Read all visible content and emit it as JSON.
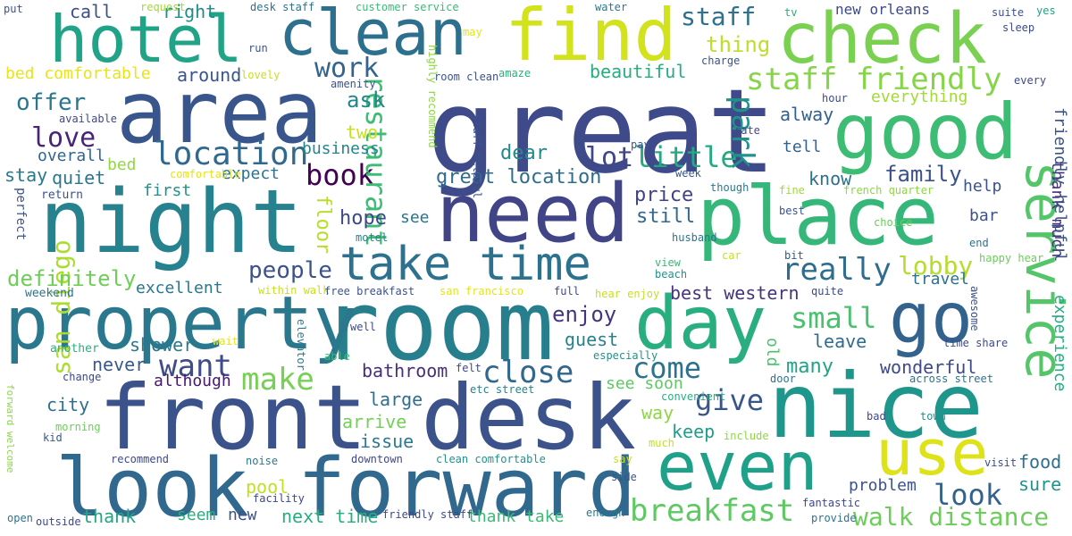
{
  "words": [
    {
      "text": "great",
      "color": "#3e4a89"
    },
    {
      "text": "room",
      "color": "#277f8e"
    },
    {
      "text": "front desk",
      "color": "#3b528b"
    },
    {
      "text": "look forward",
      "color": "#31688e"
    },
    {
      "text": "night",
      "color": "#26828e"
    },
    {
      "text": "need",
      "color": "#414487"
    },
    {
      "text": "area",
      "color": "#39568c"
    },
    {
      "text": "place",
      "color": "#35b779"
    },
    {
      "text": "nice",
      "color": "#1f968b"
    },
    {
      "text": "find",
      "color": "#d2e21b"
    },
    {
      "text": "check",
      "color": "#7ad151"
    },
    {
      "text": "good",
      "color": "#3dbc74"
    },
    {
      "text": "hotel",
      "color": "#20a386"
    },
    {
      "text": "day",
      "color": "#29af7f"
    },
    {
      "text": "property",
      "color": "#2a788e"
    },
    {
      "text": "even",
      "color": "#1fa088"
    },
    {
      "text": "take time",
      "color": "#2c728e"
    },
    {
      "text": "clean",
      "color": "#2d708e"
    },
    {
      "text": "go",
      "color": "#33638d"
    },
    {
      "text": "service",
      "color": "#54c568"
    },
    {
      "text": "use",
      "color": "#dde318"
    },
    {
      "text": "breakfast",
      "color": "#5ec962"
    },
    {
      "text": "location",
      "color": "#30698e"
    },
    {
      "text": "san diego",
      "color": "#addc30"
    },
    {
      "text": "walk distance",
      "color": "#6ccd5a"
    },
    {
      "text": "staff friendly",
      "color": "#86d549"
    },
    {
      "text": "book",
      "color": "#440154"
    },
    {
      "text": "restaurant",
      "color": "#3dbc74"
    },
    {
      "text": "work",
      "color": "#32648e"
    },
    {
      "text": "love",
      "color": "#482576"
    },
    {
      "text": "offer",
      "color": "#2a768e"
    },
    {
      "text": "make",
      "color": "#75d054"
    },
    {
      "text": "want",
      "color": "#3e4c8a"
    },
    {
      "text": "close",
      "color": "#31678e"
    },
    {
      "text": "come",
      "color": "#2c728e"
    },
    {
      "text": "give",
      "color": "#39568c"
    },
    {
      "text": "little",
      "color": "#24aa83"
    },
    {
      "text": "small",
      "color": "#4ac16d"
    },
    {
      "text": "really",
      "color": "#2e6d8e"
    },
    {
      "text": "look",
      "color": "#33638d"
    },
    {
      "text": "lobby",
      "color": "#b5de2b"
    },
    {
      "text": "park",
      "color": "#21918c"
    },
    {
      "text": "people",
      "color": "#3b528b"
    },
    {
      "text": "definitely",
      "color": "#6ece58"
    },
    {
      "text": "staff",
      "color": "#2d718e"
    },
    {
      "text": "thing",
      "color": "#bddf26"
    },
    {
      "text": "lot",
      "color": "#3f4788"
    },
    {
      "text": "enjoy",
      "color": "#453581"
    },
    {
      "text": "family",
      "color": "#3b528b"
    },
    {
      "text": "great location",
      "color": "#2f6c8e"
    },
    {
      "text": "best western",
      "color": "#46337e"
    },
    {
      "text": "wonderful",
      "color": "#3e4989"
    },
    {
      "text": "ask",
      "color": "#25858e"
    },
    {
      "text": "beautiful",
      "color": "#26ad81"
    },
    {
      "text": "dear",
      "color": "#23898e"
    },
    {
      "text": "floor",
      "color": "#b8de29"
    },
    {
      "text": "hope",
      "color": "#3e4989"
    },
    {
      "text": "price",
      "color": "#424186"
    },
    {
      "text": "still",
      "color": "#31688e"
    },
    {
      "text": "many",
      "color": "#20a486"
    },
    {
      "text": "leave",
      "color": "#2f6b8e"
    },
    {
      "text": "guest",
      "color": "#27808e"
    },
    {
      "text": "pool",
      "color": "#c2df23"
    },
    {
      "text": "keep",
      "color": "#1f9e89"
    },
    {
      "text": "way",
      "color": "#8ed645"
    },
    {
      "text": "next time",
      "color": "#26ad81"
    },
    {
      "text": "city",
      "color": "#2d708e"
    },
    {
      "text": "never",
      "color": "#38598c"
    },
    {
      "text": "shower",
      "color": "#2a788e"
    },
    {
      "text": "bathroom",
      "color": "#46307e"
    },
    {
      "text": "large",
      "color": "#2e6e8e"
    },
    {
      "text": "arrive",
      "color": "#73d056"
    },
    {
      "text": "issue",
      "color": "#2a788e"
    },
    {
      "text": "food",
      "color": "#2d708e"
    },
    {
      "text": "sure",
      "color": "#1f948c"
    },
    {
      "text": "problem",
      "color": "#3b528b"
    },
    {
      "text": "around",
      "color": "#39568c"
    },
    {
      "text": "call",
      "color": "#3b518b"
    },
    {
      "text": "right",
      "color": "#228c8d"
    },
    {
      "text": "bed comfortable",
      "color": "#e7e419"
    },
    {
      "text": "stay",
      "color": "#2a788e"
    },
    {
      "text": "quiet",
      "color": "#2b758e"
    },
    {
      "text": "bed",
      "color": "#93d741"
    },
    {
      "text": "first",
      "color": "#21918c"
    },
    {
      "text": "overall",
      "color": "#31668e"
    },
    {
      "text": "business",
      "color": "#25838e"
    },
    {
      "text": "two",
      "color": "#c8e020"
    },
    {
      "text": "expect",
      "color": "#2c728e"
    },
    {
      "text": "see",
      "color": "#2a768e"
    },
    {
      "text": "excellent",
      "color": "#2a768e"
    },
    {
      "text": "travel",
      "color": "#2c728e"
    },
    {
      "text": "help",
      "color": "#3b528b"
    },
    {
      "text": "bar",
      "color": "#3b528b"
    },
    {
      "text": "know",
      "color": "#2d708e"
    },
    {
      "text": "tell",
      "color": "#33638d"
    },
    {
      "text": "alway",
      "color": "#34608d"
    },
    {
      "text": "everything",
      "color": "#a2da37"
    },
    {
      "text": "thank much",
      "color": "#46327e"
    },
    {
      "text": "friendly helpful",
      "color": "#3b528b"
    },
    {
      "text": "experience",
      "color": "#25ac82"
    },
    {
      "text": "although",
      "color": "#48186a"
    },
    {
      "text": "see soon",
      "color": "#5ec962"
    },
    {
      "text": "thank",
      "color": "#21a585"
    },
    {
      "text": "seem",
      "color": "#29af7f"
    },
    {
      "text": "new",
      "color": "#3b528b"
    },
    {
      "text": "thank take",
      "color": "#3aba76"
    },
    {
      "text": "old",
      "color": "#4ac16d"
    },
    {
      "text": "perfect",
      "color": "#3b528b"
    },
    {
      "text": "return",
      "color": "#3b528b"
    },
    {
      "text": "weekend",
      "color": "#2c738e"
    },
    {
      "text": "another",
      "color": "#29af7f"
    },
    {
      "text": "change",
      "color": "#3e4989"
    },
    {
      "text": "forward welcome",
      "color": "#8ed645"
    },
    {
      "text": "morning",
      "color": "#6ccd5a"
    },
    {
      "text": "kid",
      "color": "#38588c"
    },
    {
      "text": "recommend",
      "color": "#3e4989"
    },
    {
      "text": "noise",
      "color": "#2a788e"
    },
    {
      "text": "downtown",
      "color": "#3f4889"
    },
    {
      "text": "clean comfortable",
      "color": "#21918c"
    },
    {
      "text": "facility",
      "color": "#3f4889"
    },
    {
      "text": "friendly staff",
      "color": "#3f4889"
    },
    {
      "text": "outside",
      "color": "#3e4989"
    },
    {
      "text": "open",
      "color": "#2c738e"
    },
    {
      "text": "put",
      "color": "#3b528b"
    },
    {
      "text": "request",
      "color": "#a2da37"
    },
    {
      "text": "desk staff",
      "color": "#2c728e"
    },
    {
      "text": "customer service",
      "color": "#3aba76"
    },
    {
      "text": "water",
      "color": "#2a788e"
    },
    {
      "text": "tv",
      "color": "#27ad81"
    },
    {
      "text": "suite",
      "color": "#3b528b"
    },
    {
      "text": "sleep",
      "color": "#3e4989"
    },
    {
      "text": "new orleans",
      "color": "#3e4989"
    },
    {
      "text": "yes",
      "color": "#20a486"
    },
    {
      "text": "run",
      "color": "#3b528b"
    },
    {
      "text": "lovely",
      "color": "#c8e020"
    },
    {
      "text": "may",
      "color": "#e5e419"
    },
    {
      "text": "room clean",
      "color": "#3b528b"
    },
    {
      "text": "amaze",
      "color": "#29af7f"
    },
    {
      "text": "amenity",
      "color": "#3b528b"
    },
    {
      "text": "highly recommend",
      "color": "#8ed645"
    },
    {
      "text": "staff helpful",
      "color": "#3b528b"
    },
    {
      "text": "charge",
      "color": "#3b528b"
    },
    {
      "text": "hour",
      "color": "#3e4989"
    },
    {
      "text": "every",
      "color": "#3e4989"
    },
    {
      "text": "rate",
      "color": "#3e4989"
    },
    {
      "text": "pay",
      "color": "#38588c"
    },
    {
      "text": "week",
      "color": "#38588c"
    },
    {
      "text": "though",
      "color": "#2a788e"
    },
    {
      "text": "fine",
      "color": "#a2da37"
    },
    {
      "text": "french quarter",
      "color": "#8ed645"
    },
    {
      "text": "best",
      "color": "#3b528b"
    },
    {
      "text": "choice",
      "color": "#6ccd5a"
    },
    {
      "text": "husband",
      "color": "#2c738e"
    },
    {
      "text": "motel",
      "color": "#26828e"
    },
    {
      "text": "end",
      "color": "#2c738e"
    },
    {
      "text": "happy hear",
      "color": "#6ccd5a"
    },
    {
      "text": "bit",
      "color": "#38588c"
    },
    {
      "text": "car",
      "color": "#c8e020"
    },
    {
      "text": "view",
      "color": "#3aba76"
    },
    {
      "text": "beach",
      "color": "#21918c"
    },
    {
      "text": "within walk",
      "color": "#c8e020"
    },
    {
      "text": "free breakfast",
      "color": "#3b528b"
    },
    {
      "text": "san francisco",
      "color": "#e5e419"
    },
    {
      "text": "full",
      "color": "#3e4989"
    },
    {
      "text": "hear enjoy",
      "color": "#c8e020"
    },
    {
      "text": "quite",
      "color": "#3e4989"
    },
    {
      "text": "awesome",
      "color": "#3b528b"
    },
    {
      "text": "time share",
      "color": "#3e4989"
    },
    {
      "text": "wait",
      "color": "#e5e419"
    },
    {
      "text": "able",
      "color": "#3aba76"
    },
    {
      "text": "well",
      "color": "#3e4989"
    },
    {
      "text": "elevator",
      "color": "#2a788e"
    },
    {
      "text": "especially",
      "color": "#21918c"
    },
    {
      "text": "felt",
      "color": "#3e4989"
    },
    {
      "text": "etc street",
      "color": "#26828e"
    },
    {
      "text": "convenient",
      "color": "#27ad81"
    },
    {
      "text": "door",
      "color": "#2c738e"
    },
    {
      "text": "across street",
      "color": "#2c738e"
    },
    {
      "text": "bad",
      "color": "#3e4989"
    },
    {
      "text": "town",
      "color": "#21918c"
    },
    {
      "text": "include",
      "color": "#8ed645"
    },
    {
      "text": "much",
      "color": "#c8e020"
    },
    {
      "text": "visit",
      "color": "#3e4989"
    },
    {
      "text": "say",
      "color": "#c8e020"
    },
    {
      "text": "side",
      "color": "#3b528b"
    },
    {
      "text": "fantastic",
      "color": "#3e4989"
    },
    {
      "text": "provide",
      "color": "#2c738e"
    },
    {
      "text": "enough",
      "color": "#2a788e"
    },
    {
      "text": "comfortable",
      "color": "#e5e419"
    },
    {
      "text": "available",
      "color": "#3e4989"
    }
  ]
}
